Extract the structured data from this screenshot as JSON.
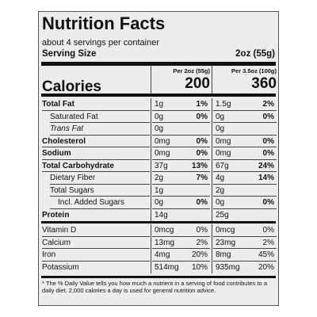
{
  "header": {
    "title": "Nutrition Facts",
    "servings": "about 4 servings per container",
    "serving_size_label": "Serving Size",
    "serving_size": "2oz (55g)"
  },
  "columns": [
    "Per 2oz (55g)",
    "Per 3.5oz (100g)"
  ],
  "calories": {
    "label": "Calories",
    "values": [
      "200",
      "360"
    ]
  },
  "nutrients": [
    {
      "name": "Total Fat",
      "bold": true,
      "indent": 0,
      "cells": [
        [
          "1g",
          "1%"
        ],
        [
          "1.5g",
          "2%"
        ]
      ]
    },
    {
      "name": "Saturated Fat",
      "indent": 1,
      "cells": [
        [
          "0g",
          "0%"
        ],
        [
          "0g",
          "0%"
        ]
      ]
    },
    {
      "name": "Trans Fat",
      "indent": 1,
      "italic": true,
      "cells": [
        [
          "0g"
        ],
        [
          "0g"
        ]
      ]
    },
    {
      "name": "Cholesterol",
      "bold": true,
      "indent": 0,
      "cells": [
        [
          "0mg",
          "0%"
        ],
        [
          "0mg",
          "0%"
        ]
      ]
    },
    {
      "name": "Sodium",
      "bold": true,
      "indent": 0,
      "cells": [
        [
          "0mg",
          "0%"
        ],
        [
          "0mg",
          "0%"
        ]
      ]
    },
    {
      "name": "Total Carbohydrate",
      "bold": true,
      "indent": 0,
      "cells": [
        [
          "37g",
          "13%"
        ],
        [
          "67g",
          "24%"
        ]
      ]
    },
    {
      "name": "Dietary Fiber",
      "indent": 1,
      "cells": [
        [
          "2g",
          "7%"
        ],
        [
          "4g",
          "14%"
        ]
      ]
    },
    {
      "name": "Total Sugars",
      "indent": 1,
      "cells": [
        [
          "1g"
        ],
        [
          "2g"
        ]
      ]
    },
    {
      "name": "Incl. Added Sugars",
      "indent": 2,
      "cells": [
        [
          "0g",
          "0%"
        ],
        [
          "0g",
          "0%"
        ]
      ]
    },
    {
      "name": "Protein",
      "bold": true,
      "indent": 0,
      "cells": [
        [
          "14g"
        ],
        [
          "25g"
        ]
      ]
    }
  ],
  "vitamins": [
    {
      "name": "Vitamin D",
      "cells": [
        [
          "0mcg",
          "0%"
        ],
        [
          "0mcg",
          "0%"
        ]
      ]
    },
    {
      "name": "Calcium",
      "cells": [
        [
          "13mg",
          "2%"
        ],
        [
          "23mg",
          "2%"
        ]
      ]
    },
    {
      "name": "Iron",
      "cells": [
        [
          "4mg",
          "20%"
        ],
        [
          "8mg",
          "45%"
        ]
      ]
    },
    {
      "name": "Potassium",
      "cells": [
        [
          "514mg",
          "10%"
        ],
        [
          "935mg",
          "20%"
        ]
      ]
    }
  ],
  "footnote": "* The % Daily Value tells you how much a nutrient in a serving of food contributes to a daily diet. 2,000 calories a day is used for general nutrition advice."
}
